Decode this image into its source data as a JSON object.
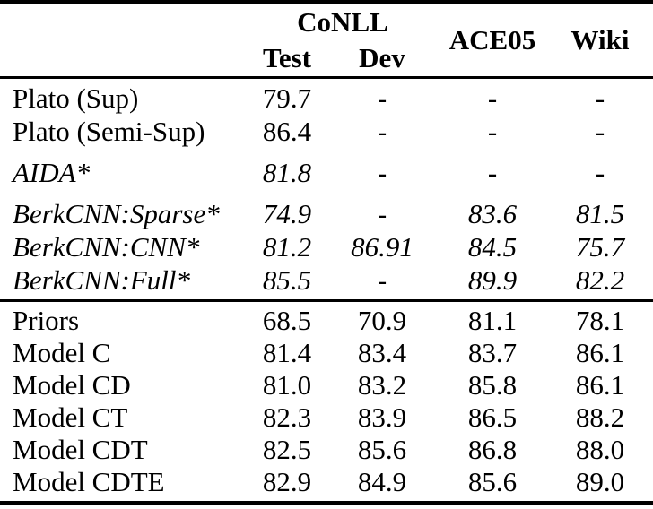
{
  "header": {
    "group_label": "CoNLL",
    "sub_labels": [
      "Test",
      "Dev"
    ],
    "col_labels": [
      "ACE05",
      "Wiki"
    ]
  },
  "rows": [
    {
      "label": "Plato (Sup)",
      "emphasis": false,
      "values": [
        "79.7",
        "-",
        "-",
        "-"
      ]
    },
    {
      "label": "Plato (Semi-Sup)",
      "emphasis": false,
      "values": [
        "86.4",
        "-",
        "-",
        "-"
      ]
    },
    {
      "label": "AIDA*",
      "emphasis": true,
      "values": [
        "81.8",
        "-",
        "-",
        "-"
      ]
    },
    {
      "label": "BerkCNN:Sparse*",
      "emphasis": true,
      "values": [
        "74.9",
        "-",
        "83.6",
        "81.5"
      ]
    },
    {
      "label": "BerkCNN:CNN*",
      "emphasis": true,
      "values": [
        "81.2",
        "86.91",
        "84.5",
        "75.7"
      ]
    },
    {
      "label": "BerkCNN:Full*",
      "emphasis": true,
      "values": [
        "85.5",
        "-",
        "89.9",
        "82.2"
      ]
    },
    {
      "label": "Priors",
      "emphasis": false,
      "values": [
        "68.5",
        "70.9",
        "81.1",
        "78.1"
      ]
    },
    {
      "label": "Model C",
      "emphasis": false,
      "values": [
        "81.4",
        "83.4",
        "83.7",
        "86.1"
      ]
    },
    {
      "label": "Model CD",
      "emphasis": false,
      "values": [
        "81.0",
        "83.2",
        "85.8",
        "86.1"
      ]
    },
    {
      "label": "Model CT",
      "emphasis": false,
      "values": [
        "82.3",
        "83.9",
        "86.5",
        "88.2"
      ]
    },
    {
      "label": "Model CDT",
      "emphasis": false,
      "values": [
        "82.5",
        "85.6",
        "86.8",
        "88.0"
      ]
    },
    {
      "label": "Model CDTE",
      "emphasis": false,
      "values": [
        "82.9",
        "84.9",
        "85.6",
        "89.0"
      ]
    }
  ]
}
